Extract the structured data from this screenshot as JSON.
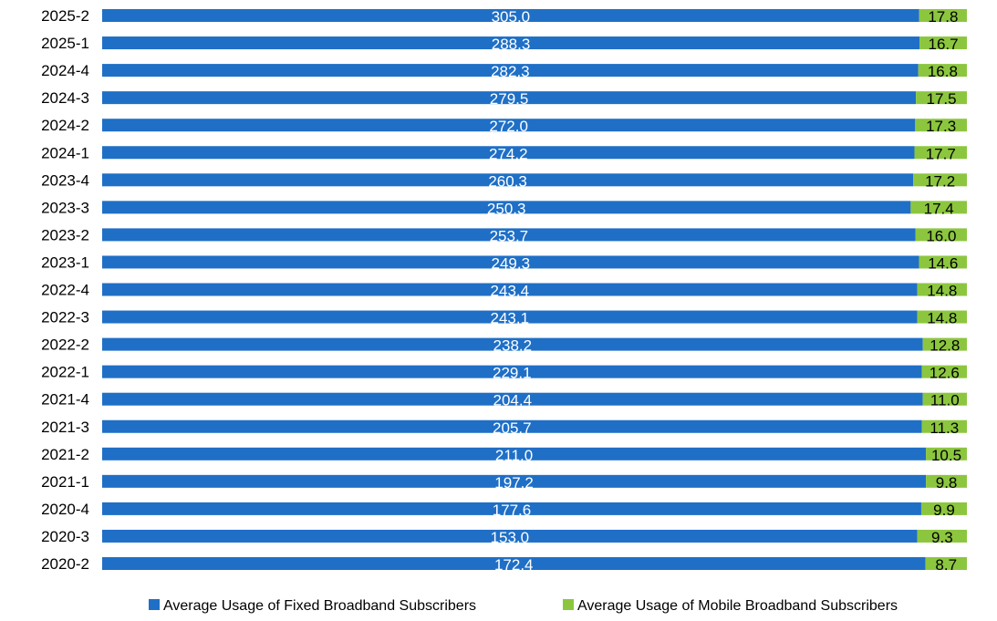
{
  "chart_data": {
    "type": "bar",
    "orientation": "horizontal",
    "stacked": "100%",
    "categories": [
      "2025-2",
      "2025-1",
      "2024-4",
      "2024-3",
      "2024-2",
      "2024-1",
      "2023-4",
      "2023-3",
      "2023-2",
      "2023-1",
      "2022-4",
      "2022-3",
      "2022-2",
      "2022-1",
      "2021-4",
      "2021-3",
      "2021-2",
      "2021-1",
      "2020-4",
      "2020-3",
      "2020-2"
    ],
    "series": [
      {
        "name": "Average Usage of Fixed Broadband Subscribers",
        "color": "#1f6fc6",
        "values": [
          305.0,
          288.3,
          282.3,
          279.5,
          272.0,
          274.2,
          260.3,
          250.3,
          253.7,
          249.3,
          243.4,
          243.1,
          238.2,
          229.1,
          204.4,
          205.7,
          211.0,
          197.2,
          177.6,
          153.0,
          172.4
        ],
        "labels": [
          "305.0",
          "288.3",
          "282.3",
          "279.5",
          "272.0",
          "274.2",
          "260.3",
          "250.3",
          "253.7",
          "249.3",
          "243.4",
          "243.1",
          "238.2",
          "229.1",
          "204.4",
          "205.7",
          "211.0",
          "197.2",
          "177.6",
          "153.0",
          "172.4"
        ]
      },
      {
        "name": "Average Usage of Mobile Broadband Subscribers",
        "color": "#8cc63f",
        "values": [
          17.8,
          16.7,
          16.8,
          17.5,
          17.3,
          17.7,
          17.2,
          17.4,
          16.0,
          14.6,
          14.8,
          14.8,
          12.8,
          12.6,
          11.0,
          11.3,
          10.5,
          9.8,
          9.9,
          9.3,
          8.7
        ],
        "labels": [
          "17.8",
          "16.7",
          "16.8",
          "17.5",
          "17.3",
          "17.7",
          "17.2",
          "17.4",
          "16.0",
          "14.6",
          "14.8",
          "14.8",
          "12.8",
          "12.6",
          "11.0",
          "11.3",
          "10.5",
          "9.8",
          "9.9",
          "9.3",
          "8.7"
        ]
      }
    ],
    "title": "",
    "xlabel": "",
    "ylabel": "",
    "grid": false,
    "legend_position": "bottom"
  }
}
